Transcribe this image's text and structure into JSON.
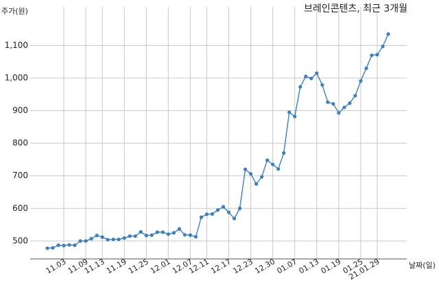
{
  "chart_data": {
    "type": "line",
    "title": "브레인콘텐츠, 최근 3개월",
    "ylabel": "주가(원)",
    "xlabel": "날짜(일)",
    "ylim": [
      445,
      1145
    ],
    "yticks": [
      500,
      600,
      700,
      800,
      900,
      1000,
      1100
    ],
    "ytick_labels": [
      "500",
      "600",
      "700",
      "800",
      "900",
      "1,000",
      "1,100"
    ],
    "xtick_labels": [
      "11.03",
      "11.09",
      "11.13",
      "11.19",
      "11.25",
      "12.01",
      "12.07",
      "12.11",
      "12.17",
      "12.23",
      "12.30",
      "01.07",
      "01.13",
      "01.19",
      "01.25",
      "21.01.29"
    ],
    "xtick_index": [
      3,
      7,
      10,
      14,
      18,
      22,
      26,
      29,
      33,
      37,
      41,
      45,
      49,
      53,
      57,
      60
    ],
    "grid": true,
    "line_color": "#3a7fc1",
    "series": [
      {
        "values": [
          478,
          479,
          487,
          486,
          488,
          487,
          500,
          500,
          507,
          517,
          512,
          504,
          505,
          505,
          509,
          515,
          515,
          528,
          517,
          518,
          527,
          527,
          521,
          525,
          537,
          519,
          518,
          513,
          573,
          582,
          583,
          595,
          605,
          588,
          569,
          600,
          720,
          706,
          675,
          697,
          748,
          735,
          721,
          770,
          895,
          882,
          973,
          1005,
          999,
          1015,
          979,
          926,
          921,
          893,
          910,
          923,
          946,
          991,
          1030,
          1070,
          1072,
          1097,
          1135
        ]
      }
    ]
  }
}
